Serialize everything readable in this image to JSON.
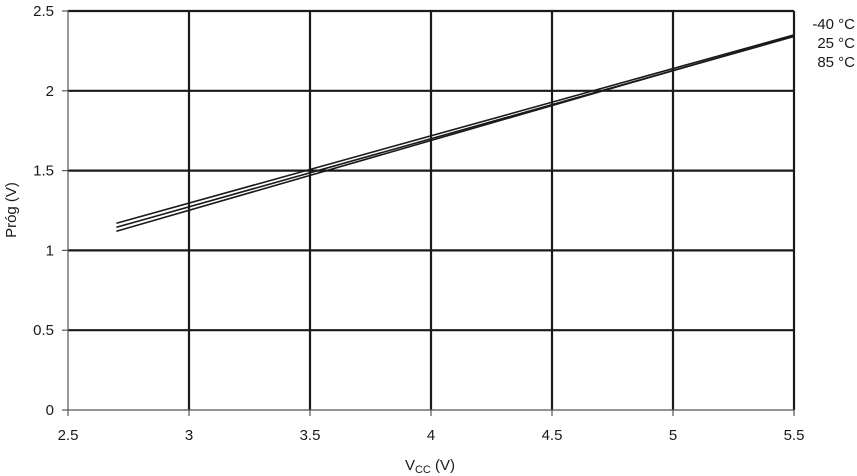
{
  "chart_data": {
    "type": "line",
    "xlabel_main": "V",
    "xlabel_sub": "CC",
    "xlabel_unit": " (V)",
    "ylabel": "Próg (V)",
    "xlim": [
      2.5,
      5.5
    ],
    "ylim": [
      0,
      2.5
    ],
    "xticks": [
      2.5,
      3,
      3.5,
      4,
      4.5,
      5,
      5.5
    ],
    "yticks": [
      0,
      0.5,
      1,
      1.5,
      2,
      2.5
    ],
    "xtick_labels": [
      "2.5",
      "3",
      "3.5",
      "4",
      "4.5",
      "5",
      "5.5"
    ],
    "ytick_labels": [
      "0",
      "0.5",
      "1",
      "1.5",
      "2",
      "2.5"
    ],
    "grid": true,
    "legend_placement": "right",
    "series": [
      {
        "name": "-40 °C",
        "x": [
          2.7,
          5.5
        ],
        "y": [
          1.17,
          2.35
        ]
      },
      {
        "name": "25 °C",
        "x": [
          2.7,
          5.5
        ],
        "y": [
          1.145,
          2.34
        ]
      },
      {
        "name": "85 °C",
        "x": [
          2.7,
          5.5
        ],
        "y": [
          1.12,
          2.345
        ]
      }
    ],
    "colors": {
      "grid": "#1a1a1a",
      "line": "#1a1a1a",
      "axis": "#555555"
    }
  }
}
